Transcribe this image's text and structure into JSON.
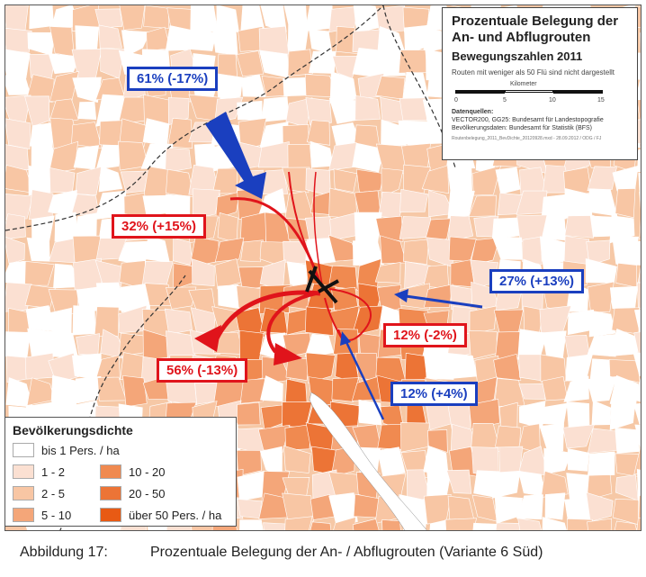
{
  "title_box": {
    "title": "Prozentuale Belegung der An- und Abflugrouten",
    "subtitle": "Bewegungszahlen 2011",
    "note": "Routen mit weniger als 50 Flü sind nicht dargestellt",
    "scale_unit": "Kilometer",
    "scale_ticks": [
      "0",
      "5",
      "10",
      "15"
    ],
    "sources_title": "Datenquellen:",
    "sources": [
      "VECTOR200, GG25: Bundesamt für Landestopografie",
      "Bevölkerungsdaten: Bundesamt für Statistik (BFS)"
    ],
    "footer": "Routenbelegung_2011_BevDichte_20120928.mxd - 28.09.2012 / ODG / FJ"
  },
  "route_labels": [
    {
      "text": "61% (-17%)",
      "color": "blue"
    },
    {
      "text": "32% (+15%)",
      "color": "red"
    },
    {
      "text": "27% (+13%)",
      "color": "blue"
    },
    {
      "text": "12% (-2%)",
      "color": "red"
    },
    {
      "text": "56% (-13%)",
      "color": "red"
    },
    {
      "text": "12% (+4%)",
      "color": "blue"
    }
  ],
  "legend": {
    "title": "Bevölkerungsdichte",
    "items": [
      {
        "label": "bis 1 Pers. / ha",
        "color": "#ffffff"
      },
      {
        "label": "1 - 2",
        "color": "#fbe0d2"
      },
      {
        "label": "2 - 5",
        "color": "#f8c6a4"
      },
      {
        "label": "5 - 10",
        "color": "#f4a679"
      },
      {
        "label": "10 - 20",
        "color": "#f08a50"
      },
      {
        "label": "20 - 50",
        "color": "#ec7436"
      },
      {
        "label": "über 50 Pers. / ha",
        "color": "#e85a14"
      }
    ]
  },
  "colors": {
    "red_route": "#e0141b",
    "blue_route": "#1a3fbf",
    "lake": "#ffffff"
  },
  "caption": {
    "number": "Abbildung 17:",
    "text": "Prozentuale Belegung der An- / Abflugrouten (Variante 6 Süd)"
  }
}
